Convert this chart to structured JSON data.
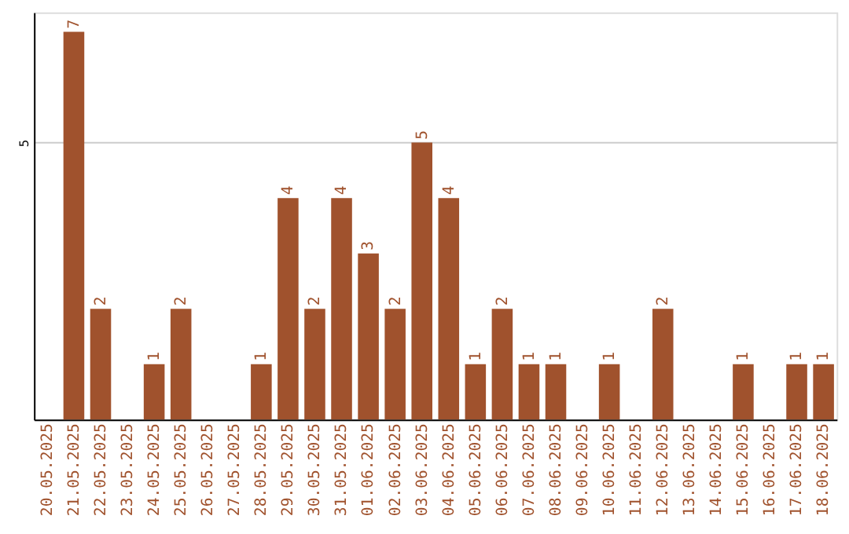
{
  "chart_data": {
    "type": "bar",
    "categories": [
      "20.05.2025",
      "21.05.2025",
      "22.05.2025",
      "23.05.2025",
      "24.05.2025",
      "25.05.2025",
      "26.05.2025",
      "27.05.2025",
      "28.05.2025",
      "29.05.2025",
      "30.05.2025",
      "31.05.2025",
      "01.06.2025",
      "02.06.2025",
      "03.06.2025",
      "04.06.2025",
      "05.06.2025",
      "06.06.2025",
      "07.06.2025",
      "08.06.2025",
      "09.06.2025",
      "10.06.2025",
      "11.06.2025",
      "12.06.2025",
      "13.06.2025",
      "14.06.2025",
      "15.06.2025",
      "16.06.2025",
      "17.06.2025",
      "18.06.2025"
    ],
    "values": [
      0,
      7,
      2,
      0,
      1,
      2,
      0,
      0,
      1,
      4,
      2,
      4,
      3,
      2,
      5,
      4,
      1,
      2,
      1,
      1,
      0,
      1,
      0,
      2,
      0,
      0,
      1,
      0,
      1,
      1
    ],
    "value_labels": [
      null,
      "7",
      "2",
      null,
      "1",
      "2",
      null,
      null,
      "1",
      "4",
      "2",
      "4",
      "3",
      "2",
      "5",
      "4",
      "1",
      "2",
      "1",
      "1",
      null,
      "1",
      null,
      "2",
      null,
      null,
      "1",
      null,
      "1",
      "1"
    ],
    "color": "#a0522d",
    "ylim": [
      0,
      7.35
    ],
    "yticks": [
      5
    ],
    "grid": "y"
  }
}
